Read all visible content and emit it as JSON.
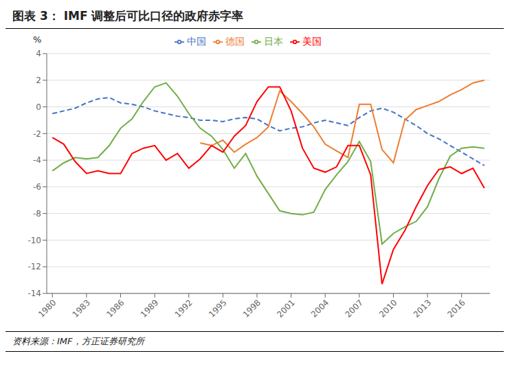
{
  "chart_data": {
    "type": "line",
    "title": "图表 3：  IMF 调整后可比口径的政府赤字率",
    "annotations": [
      "资料来源：IMF，方正证券研究所"
    ],
    "ylabel": "%",
    "x": [
      1980,
      1981,
      1982,
      1983,
      1984,
      1985,
      1986,
      1987,
      1988,
      1989,
      1990,
      1991,
      1992,
      1993,
      1994,
      1995,
      1996,
      1997,
      1998,
      1999,
      2000,
      2001,
      2002,
      2003,
      2004,
      2005,
      2006,
      2007,
      2008,
      2009,
      2010,
      2011,
      2012,
      2013,
      2014,
      2015,
      2016,
      2017,
      2018
    ],
    "series": [
      {
        "name": "中国",
        "color": "#4472C4",
        "line_style": "dashed",
        "values": [
          -0.5,
          -0.3,
          -0.1,
          0.3,
          0.6,
          0.7,
          0.3,
          0.2,
          0.0,
          -0.3,
          -0.5,
          -0.7,
          -0.8,
          -1.0,
          -1.0,
          -1.1,
          -0.9,
          -0.8,
          -0.9,
          -1.4,
          -1.8,
          -1.6,
          -1.5,
          -1.2,
          -1.0,
          -1.2,
          -1.4,
          -0.8,
          -0.3,
          -0.1,
          -0.4,
          -0.9,
          -1.4,
          -2.0,
          -2.4,
          -2.9,
          -3.4,
          -3.9,
          -4.4
        ]
      },
      {
        "name": "德国",
        "color": "#ED7D31",
        "line_style": "solid",
        "values": [
          null,
          null,
          null,
          null,
          null,
          null,
          null,
          null,
          null,
          null,
          null,
          null,
          null,
          -2.7,
          -2.9,
          -2.5,
          -3.4,
          -2.8,
          -2.3,
          -1.5,
          1.2,
          0.4,
          -0.5,
          -1.5,
          -2.8,
          -3.3,
          -3.8,
          0.2,
          0.2,
          -3.2,
          -4.2,
          -1.0,
          -0.2,
          0.1,
          0.4,
          0.9,
          1.3,
          1.8,
          2.0
        ]
      },
      {
        "name": "日本",
        "color": "#70AD47",
        "line_style": "solid",
        "values": [
          -4.8,
          -4.2,
          -3.8,
          -3.9,
          -3.8,
          -2.9,
          -1.6,
          -0.9,
          0.4,
          1.5,
          1.8,
          0.8,
          -0.5,
          -1.6,
          -2.2,
          -3.2,
          -4.6,
          -3.5,
          -5.2,
          -6.5,
          -7.8,
          -8.0,
          -8.1,
          -7.9,
          -6.2,
          -5.1,
          -4.1,
          -2.6,
          -4.1,
          -10.3,
          -9.5,
          -9.0,
          -8.6,
          -7.5,
          -5.4,
          -3.7,
          -3.1,
          -3.0,
          -3.1
        ]
      },
      {
        "name": "美国",
        "color": "#FF0000",
        "line_style": "solid",
        "values": [
          -2.3,
          -2.8,
          -4.1,
          -5.0,
          -4.8,
          -5.0,
          -5.0,
          -3.5,
          -3.1,
          -2.9,
          -4.0,
          -3.5,
          -4.6,
          -3.9,
          -2.9,
          -3.4,
          -2.2,
          -1.4,
          0.4,
          1.5,
          1.5,
          -0.3,
          -3.1,
          -4.6,
          -4.9,
          -4.5,
          -2.9,
          -2.9,
          -5.1,
          -13.3,
          -10.7,
          -9.3,
          -7.5,
          -5.9,
          -4.7,
          -4.5,
          -5.0,
          -4.6,
          -6.1
        ]
      }
    ],
    "xlim": [
      1979.5,
      2018.5
    ],
    "xticks": [
      1980,
      1983,
      1986,
      1989,
      1992,
      1995,
      1998,
      2001,
      2004,
      2007,
      2010,
      2013,
      2016
    ],
    "ylim": [
      -14,
      4
    ],
    "yticks": [
      4,
      2,
      0,
      -2,
      -4,
      -6,
      -8,
      -10,
      -12,
      -14
    ],
    "grid": true,
    "legend": "top"
  }
}
